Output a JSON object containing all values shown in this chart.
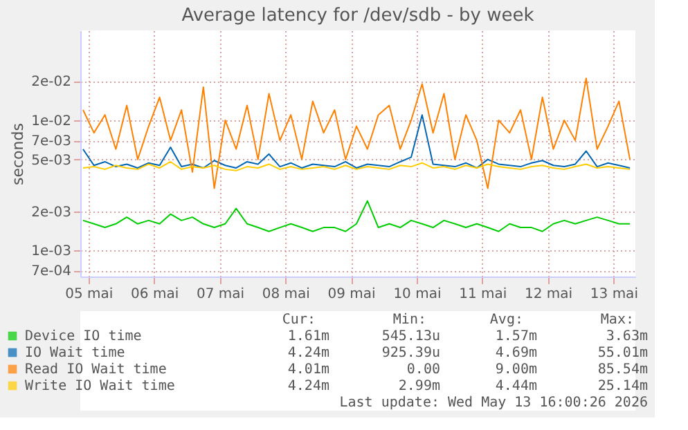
{
  "chart_data": {
    "type": "line",
    "title": "Average latency for /dev/sdb - by week",
    "ylabel": "seconds",
    "x": [
      "2026-05-04T22:00",
      "2026-05-05T02:00",
      "2026-05-05T06:00",
      "2026-05-05T10:00",
      "2026-05-05T14:00",
      "2026-05-05T18:00",
      "2026-05-05T22:00",
      "2026-05-06T02:00",
      "2026-05-06T06:00",
      "2026-05-06T10:00",
      "2026-05-06T14:00",
      "2026-05-06T18:00",
      "2026-05-06T22:00",
      "2026-05-07T02:00",
      "2026-05-07T06:00",
      "2026-05-07T10:00",
      "2026-05-07T14:00",
      "2026-05-07T18:00",
      "2026-05-07T22:00",
      "2026-05-08T02:00",
      "2026-05-08T06:00",
      "2026-05-08T10:00",
      "2026-05-08T14:00",
      "2026-05-08T18:00",
      "2026-05-08T22:00",
      "2026-05-09T02:00",
      "2026-05-09T06:00",
      "2026-05-09T10:00",
      "2026-05-09T14:00",
      "2026-05-09T18:00",
      "2026-05-09T22:00",
      "2026-05-10T02:00",
      "2026-05-10T06:00",
      "2026-05-10T10:00",
      "2026-05-10T14:00",
      "2026-05-10T18:00",
      "2026-05-10T22:00",
      "2026-05-11T02:00",
      "2026-05-11T06:00",
      "2026-05-11T10:00",
      "2026-05-11T14:00",
      "2026-05-11T18:00",
      "2026-05-11T22:00",
      "2026-05-12T02:00",
      "2026-05-12T06:00",
      "2026-05-12T10:00",
      "2026-05-12T14:00",
      "2026-05-12T18:00",
      "2026-05-12T22:00",
      "2026-05-13T02:00",
      "2026-05-13T06:00"
    ],
    "series": [
      {
        "name": "Device IO time",
        "color": "#00cc00",
        "values": [
          0.0017,
          0.0016,
          0.0015,
          0.0016,
          0.0018,
          0.0016,
          0.0017,
          0.0016,
          0.0019,
          0.0017,
          0.0018,
          0.0016,
          0.0015,
          0.0016,
          0.0021,
          0.0016,
          0.0015,
          0.0014,
          0.0015,
          0.0016,
          0.0015,
          0.0014,
          0.0015,
          0.0015,
          0.0014,
          0.0016,
          0.0024,
          0.0015,
          0.0016,
          0.0015,
          0.0017,
          0.0016,
          0.0015,
          0.0017,
          0.0016,
          0.0015,
          0.0016,
          0.0015,
          0.0014,
          0.0016,
          0.0015,
          0.0015,
          0.0014,
          0.0016,
          0.0017,
          0.0016,
          0.0017,
          0.0018,
          0.0017,
          0.0016,
          0.0016
        ]
      },
      {
        "name": "IO Wait time",
        "color": "#0066b3",
        "values": [
          0.006,
          0.0045,
          0.0048,
          0.0044,
          0.0046,
          0.0043,
          0.0047,
          0.0045,
          0.0062,
          0.0044,
          0.0046,
          0.0043,
          0.0049,
          0.0045,
          0.0043,
          0.0048,
          0.0046,
          0.0055,
          0.0044,
          0.0047,
          0.0043,
          0.0046,
          0.0045,
          0.0044,
          0.0048,
          0.0043,
          0.0046,
          0.0045,
          0.0044,
          0.0048,
          0.0052,
          0.011,
          0.0046,
          0.0045,
          0.0044,
          0.0047,
          0.0043,
          0.005,
          0.0046,
          0.0045,
          0.0044,
          0.0047,
          0.0049,
          0.0045,
          0.0044,
          0.0046,
          0.0058,
          0.0044,
          0.0047,
          0.0045,
          0.0043
        ]
      },
      {
        "name": "Read IO Wait time",
        "color": "#ff8000",
        "values": [
          0.012,
          0.008,
          0.011,
          0.006,
          0.013,
          0.005,
          0.009,
          0.015,
          0.007,
          0.012,
          0.004,
          0.018,
          0.003,
          0.01,
          0.006,
          0.013,
          0.005,
          0.016,
          0.007,
          0.011,
          0.005,
          0.014,
          0.008,
          0.012,
          0.005,
          0.009,
          0.006,
          0.011,
          0.013,
          0.006,
          0.01,
          0.019,
          0.008,
          0.016,
          0.005,
          0.011,
          0.007,
          0.003,
          0.01,
          0.008,
          0.012,
          0.005,
          0.015,
          0.006,
          0.01,
          0.007,
          0.021,
          0.006,
          0.009,
          0.014,
          0.005
        ]
      },
      {
        "name": "Write IO Wait time",
        "color": "#ffcc00",
        "values": [
          0.0043,
          0.0044,
          0.0042,
          0.0045,
          0.0043,
          0.0042,
          0.0046,
          0.0043,
          0.0048,
          0.0042,
          0.0044,
          0.0043,
          0.0045,
          0.0042,
          0.0041,
          0.0044,
          0.0043,
          0.0046,
          0.0042,
          0.0044,
          0.0042,
          0.0043,
          0.0044,
          0.0042,
          0.0045,
          0.0042,
          0.0044,
          0.0043,
          0.0042,
          0.0045,
          0.0044,
          0.0047,
          0.0043,
          0.0044,
          0.0042,
          0.0045,
          0.0043,
          0.0046,
          0.0044,
          0.0043,
          0.0042,
          0.0044,
          0.0045,
          0.0043,
          0.0042,
          0.0044,
          0.0046,
          0.0043,
          0.0044,
          0.0043,
          0.0042
        ]
      }
    ],
    "xlim": [
      "2026-05-04T21:00",
      "2026-05-13T08:00"
    ],
    "xticks": [
      {
        "value": "2026-05-05",
        "label": "05 mai"
      },
      {
        "value": "2026-05-06",
        "label": "06 mai"
      },
      {
        "value": "2026-05-07",
        "label": "07 mai"
      },
      {
        "value": "2026-05-08",
        "label": "08 mai"
      },
      {
        "value": "2026-05-09",
        "label": "09 mai"
      },
      {
        "value": "2026-05-10",
        "label": "10 mai"
      },
      {
        "value": "2026-05-11",
        "label": "11 mai"
      },
      {
        "value": "2026-05-12",
        "label": "12 mai"
      },
      {
        "value": "2026-05-13",
        "label": "13 mai"
      }
    ],
    "ylim": [
      0.00063,
      0.049
    ],
    "log": true,
    "yticks": [
      {
        "value": 0.0007,
        "label": "7e-04"
      },
      {
        "value": 0.001,
        "label": "1e-03"
      },
      {
        "value": 0.002,
        "label": "2e-03"
      },
      {
        "value": 0.005,
        "label": "5e-03"
      },
      {
        "value": 0.007,
        "label": "7e-03"
      },
      {
        "value": 0.01,
        "label": "1e-02"
      },
      {
        "value": 0.02,
        "label": "2e-02"
      }
    ],
    "grid": true,
    "legend": "bottom",
    "marker": "none",
    "line_style": "solid",
    "annotations": [
      "Cur:",
      "Min:",
      "Avg:",
      "Max:",
      "1.61m",
      "545.13u",
      "1.57m",
      "3.63m",
      "4.24m",
      "925.39u",
      "4.69m",
      "55.01m",
      "4.01m",
      "0.00",
      "9.00m",
      "85.54m",
      "4.24m",
      "2.99m",
      "4.44m",
      "25.14m",
      "Last update: Wed May 13 16:00:26 2026"
    ]
  }
}
